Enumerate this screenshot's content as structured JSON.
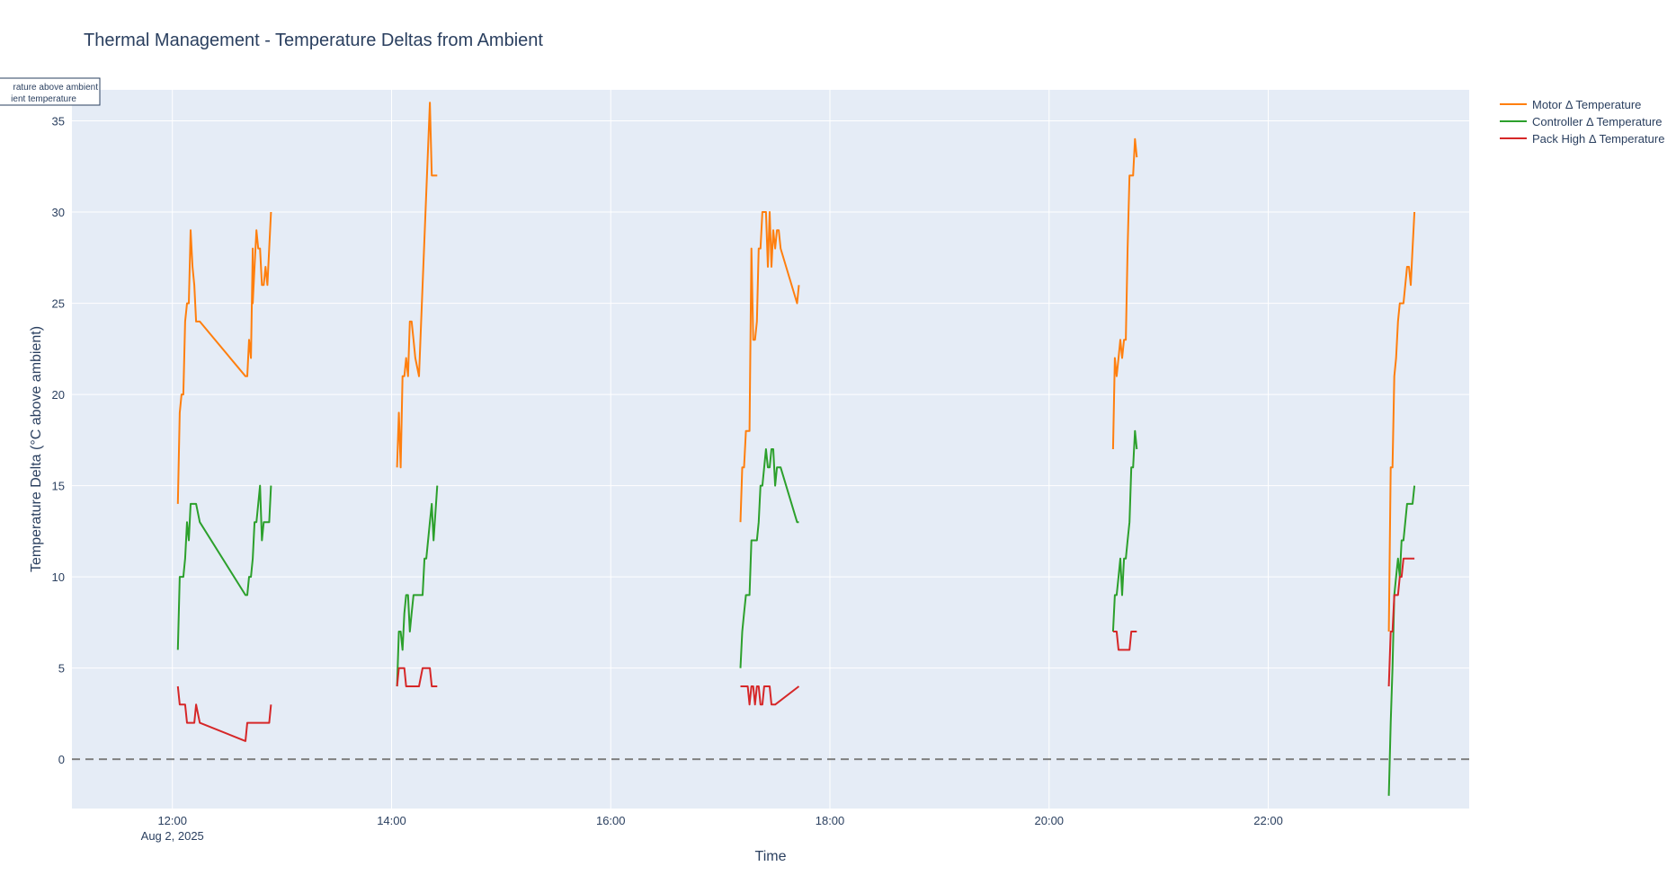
{
  "chart_data": {
    "type": "line",
    "title": "Thermal Management - Temperature Deltas from Ambient",
    "xlabel": "Time",
    "ylabel": "Temperature Delta (°C above ambient)",
    "xlim": [
      "2025-08-02 11:05",
      "2025-08-02 23:50"
    ],
    "ylim": [
      -2.7,
      36.7
    ],
    "x_ticks": [
      {
        "t": "2025-08-02 12:00",
        "label": "12:00",
        "sublabel": "Aug 2, 2025"
      },
      {
        "t": "2025-08-02 14:00",
        "label": "14:00",
        "sublabel": ""
      },
      {
        "t": "2025-08-02 16:00",
        "label": "16:00",
        "sublabel": ""
      },
      {
        "t": "2025-08-02 18:00",
        "label": "18:00",
        "sublabel": ""
      },
      {
        "t": "2025-08-02 20:00",
        "label": "20:00",
        "sublabel": ""
      },
      {
        "t": "2025-08-02 22:00",
        "label": "22:00",
        "sublabel": ""
      }
    ],
    "y_ticks": [
      0,
      5,
      10,
      15,
      20,
      25,
      30,
      35
    ],
    "grid": true,
    "legend_position": "top-right outside",
    "reference_line": {
      "y": 0,
      "style": "dashed",
      "color": "#808080"
    },
    "annotation": [
      "rature above ambient",
      "ient temperature"
    ],
    "series": [
      {
        "name": "Motor Δ Temperature",
        "color": "#ff7f0e",
        "segments": [
          {
            "x": [
              "2025-08-02 12:03",
              "2025-08-02 12:04",
              "2025-08-02 12:05",
              "2025-08-02 12:06",
              "2025-08-02 12:07",
              "2025-08-02 12:08",
              "2025-08-02 12:09",
              "2025-08-02 12:10",
              "2025-08-02 12:11",
              "2025-08-02 12:12",
              "2025-08-02 12:13",
              "2025-08-02 12:15",
              "2025-08-02 12:40",
              "2025-08-02 12:41",
              "2025-08-02 12:42",
              "2025-08-02 12:43",
              "2025-08-02 12:44",
              "2025-08-02 12:44",
              "2025-08-02 12:45",
              "2025-08-02 12:46",
              "2025-08-02 12:47",
              "2025-08-02 12:48",
              "2025-08-02 12:49",
              "2025-08-02 12:50",
              "2025-08-02 12:51",
              "2025-08-02 12:52",
              "2025-08-02 12:53",
              "2025-08-02 12:54"
            ],
            "y": [
              14,
              19,
              20,
              20,
              24,
              25,
              25,
              29,
              27,
              26,
              24,
              24,
              21,
              21,
              23,
              22,
              28,
              25,
              27,
              29,
              28,
              28,
              26,
              26,
              27,
              26,
              28,
              30
            ]
          },
          {
            "x": [
              "2025-08-02 14:03",
              "2025-08-02 14:04",
              "2025-08-02 14:05",
              "2025-08-02 14:06",
              "2025-08-02 14:07",
              "2025-08-02 14:08",
              "2025-08-02 14:09",
              "2025-08-02 14:10",
              "2025-08-02 14:11",
              "2025-08-02 14:12",
              "2025-08-02 14:13",
              "2025-08-02 14:15",
              "2025-08-02 14:17",
              "2025-08-02 14:21",
              "2025-08-02 14:22",
              "2025-08-02 14:23",
              "2025-08-02 14:25"
            ],
            "y": [
              16,
              19,
              16,
              21,
              21,
              22,
              21,
              24,
              24,
              23,
              22,
              21,
              26,
              36,
              32,
              32,
              32
            ]
          },
          {
            "x": [
              "2025-08-02 17:11",
              "2025-08-02 17:12",
              "2025-08-02 17:13",
              "2025-08-02 17:14",
              "2025-08-02 17:15",
              "2025-08-02 17:16",
              "2025-08-02 17:17",
              "2025-08-02 17:18",
              "2025-08-02 17:19",
              "2025-08-02 17:20",
              "2025-08-02 17:21",
              "2025-08-02 17:22",
              "2025-08-02 17:23",
              "2025-08-02 17:24",
              "2025-08-02 17:25",
              "2025-08-02 17:26",
              "2025-08-02 17:27",
              "2025-08-02 17:28",
              "2025-08-02 17:29",
              "2025-08-02 17:30",
              "2025-08-02 17:31",
              "2025-08-02 17:32",
              "2025-08-02 17:33",
              "2025-08-02 17:42",
              "2025-08-02 17:43"
            ],
            "y": [
              13,
              16,
              16,
              18,
              18,
              18,
              28,
              23,
              23,
              24,
              28,
              28,
              30,
              30,
              30,
              27,
              30,
              27,
              29,
              28,
              29,
              29,
              28,
              25,
              26
            ]
          },
          {
            "x": [
              "2025-08-02 20:35",
              "2025-08-02 20:36",
              "2025-08-02 20:37",
              "2025-08-02 20:38",
              "2025-08-02 20:39",
              "2025-08-02 20:40",
              "2025-08-02 20:41",
              "2025-08-02 20:42",
              "2025-08-02 20:43",
              "2025-08-02 20:44",
              "2025-08-02 20:45",
              "2025-08-02 20:46",
              "2025-08-02 20:47",
              "2025-08-02 20:48"
            ],
            "y": [
              17,
              22,
              21,
              22,
              23,
              22,
              23,
              23,
              28,
              32,
              32,
              32,
              34,
              33
            ]
          },
          {
            "x": [
              "2025-08-02 23:06",
              "2025-08-02 23:07",
              "2025-08-02 23:08",
              "2025-08-02 23:09",
              "2025-08-02 23:10",
              "2025-08-02 23:11",
              "2025-08-02 23:12",
              "2025-08-02 23:13",
              "2025-08-02 23:14",
              "2025-08-02 23:15",
              "2025-08-02 23:16",
              "2025-08-02 23:17",
              "2025-08-02 23:18",
              "2025-08-02 23:19",
              "2025-08-02 23:20"
            ],
            "y": [
              7,
              16,
              16,
              21,
              22,
              24,
              25,
              25,
              25,
              26,
              27,
              27,
              26,
              28,
              30
            ]
          }
        ]
      },
      {
        "name": "Controller Δ Temperature",
        "color": "#2ca02c",
        "segments": [
          {
            "x": [
              "2025-08-02 12:03",
              "2025-08-02 12:04",
              "2025-08-02 12:05",
              "2025-08-02 12:06",
              "2025-08-02 12:07",
              "2025-08-02 12:08",
              "2025-08-02 12:09",
              "2025-08-02 12:10",
              "2025-08-02 12:11",
              "2025-08-02 12:12",
              "2025-08-02 12:13",
              "2025-08-02 12:15",
              "2025-08-02 12:40",
              "2025-08-02 12:41",
              "2025-08-02 12:42",
              "2025-08-02 12:43",
              "2025-08-02 12:44",
              "2025-08-02 12:45",
              "2025-08-02 12:46",
              "2025-08-02 12:47",
              "2025-08-02 12:48",
              "2025-08-02 12:49",
              "2025-08-02 12:50",
              "2025-08-02 12:51",
              "2025-08-02 12:52",
              "2025-08-02 12:53",
              "2025-08-02 12:54"
            ],
            "y": [
              6,
              10,
              10,
              10,
              11,
              13,
              12,
              14,
              14,
              14,
              14,
              13,
              9,
              9,
              10,
              10,
              11,
              13,
              13,
              14,
              15,
              12,
              13,
              13,
              13,
              13,
              15
            ]
          },
          {
            "x": [
              "2025-08-02 14:03",
              "2025-08-02 14:04",
              "2025-08-02 14:05",
              "2025-08-02 14:06",
              "2025-08-02 14:07",
              "2025-08-02 14:08",
              "2025-08-02 14:09",
              "2025-08-02 14:10",
              "2025-08-02 14:11",
              "2025-08-02 14:12",
              "2025-08-02 14:13",
              "2025-08-02 14:15",
              "2025-08-02 14:16",
              "2025-08-02 14:17",
              "2025-08-02 14:18",
              "2025-08-02 14:19",
              "2025-08-02 14:20",
              "2025-08-02 14:21",
              "2025-08-02 14:22",
              "2025-08-02 14:23",
              "2025-08-02 14:25"
            ],
            "y": [
              4,
              7,
              7,
              6,
              8,
              9,
              9,
              7,
              8,
              9,
              9,
              9,
              9,
              9,
              11,
              11,
              12,
              13,
              14,
              12,
              15
            ]
          },
          {
            "x": [
              "2025-08-02 17:11",
              "2025-08-02 17:12",
              "2025-08-02 17:13",
              "2025-08-02 17:14",
              "2025-08-02 17:15",
              "2025-08-02 17:16",
              "2025-08-02 17:17",
              "2025-08-02 17:18",
              "2025-08-02 17:19",
              "2025-08-02 17:20",
              "2025-08-02 17:21",
              "2025-08-02 17:22",
              "2025-08-02 17:23",
              "2025-08-02 17:24",
              "2025-08-02 17:25",
              "2025-08-02 17:26",
              "2025-08-02 17:27",
              "2025-08-02 17:28",
              "2025-08-02 17:29",
              "2025-08-02 17:30",
              "2025-08-02 17:31",
              "2025-08-02 17:32",
              "2025-08-02 17:33",
              "2025-08-02 17:42",
              "2025-08-02 17:43"
            ],
            "y": [
              5,
              7,
              8,
              9,
              9,
              9,
              12,
              12,
              12,
              12,
              13,
              15,
              15,
              16,
              17,
              16,
              16,
              17,
              17,
              15,
              16,
              16,
              16,
              13,
              13
            ]
          },
          {
            "x": [
              "2025-08-02 20:35",
              "2025-08-02 20:36",
              "2025-08-02 20:37",
              "2025-08-02 20:38",
              "2025-08-02 20:39",
              "2025-08-02 20:40",
              "2025-08-02 20:41",
              "2025-08-02 20:42",
              "2025-08-02 20:43",
              "2025-08-02 20:44",
              "2025-08-02 20:45",
              "2025-08-02 20:46",
              "2025-08-02 20:47",
              "2025-08-02 20:48"
            ],
            "y": [
              7,
              9,
              9,
              10,
              11,
              9,
              11,
              11,
              12,
              13,
              16,
              16,
              18,
              17
            ]
          },
          {
            "x": [
              "2025-08-02 23:06",
              "2025-08-02 23:07",
              "2025-08-02 23:08",
              "2025-08-02 23:09",
              "2025-08-02 23:10",
              "2025-08-02 23:11",
              "2025-08-02 23:12",
              "2025-08-02 23:13",
              "2025-08-02 23:14",
              "2025-08-02 23:15",
              "2025-08-02 23:16",
              "2025-08-02 23:17",
              "2025-08-02 23:18",
              "2025-08-02 23:19",
              "2025-08-02 23:20"
            ],
            "y": [
              -2,
              2,
              5,
              9,
              10,
              11,
              10,
              12,
              12,
              13,
              14,
              14,
              14,
              14,
              15
            ]
          }
        ]
      },
      {
        "name": "Pack High Δ Temperature",
        "color": "#d62728",
        "segments": [
          {
            "x": [
              "2025-08-02 12:03",
              "2025-08-02 12:04",
              "2025-08-02 12:05",
              "2025-08-02 12:06",
              "2025-08-02 12:07",
              "2025-08-02 12:08",
              "2025-08-02 12:09",
              "2025-08-02 12:10",
              "2025-08-02 12:11",
              "2025-08-02 12:12",
              "2025-08-02 12:13",
              "2025-08-02 12:15",
              "2025-08-02 12:40",
              "2025-08-02 12:41",
              "2025-08-02 12:42",
              "2025-08-02 12:44",
              "2025-08-02 12:46",
              "2025-08-02 12:48",
              "2025-08-02 12:50",
              "2025-08-02 12:52",
              "2025-08-02 12:53",
              "2025-08-02 12:54"
            ],
            "y": [
              4,
              3,
              3,
              3,
              3,
              2,
              2,
              2,
              2,
              2,
              3,
              2,
              1,
              2,
              2,
              2,
              2,
              2,
              2,
              2,
              2,
              3
            ]
          },
          {
            "x": [
              "2025-08-02 14:03",
              "2025-08-02 14:04",
              "2025-08-02 14:05",
              "2025-08-02 14:06",
              "2025-08-02 14:07",
              "2025-08-02 14:08",
              "2025-08-02 14:09",
              "2025-08-02 14:10",
              "2025-08-02 14:12",
              "2025-08-02 14:14",
              "2025-08-02 14:15",
              "2025-08-02 14:17",
              "2025-08-02 14:18",
              "2025-08-02 14:19",
              "2025-08-02 14:21",
              "2025-08-02 14:22",
              "2025-08-02 14:23",
              "2025-08-02 14:25"
            ],
            "y": [
              4,
              5,
              5,
              5,
              5,
              4,
              4,
              4,
              4,
              4,
              4,
              5,
              5,
              5,
              5,
              4,
              4,
              4
            ]
          },
          {
            "x": [
              "2025-08-02 17:11",
              "2025-08-02 17:12",
              "2025-08-02 17:13",
              "2025-08-02 17:14",
              "2025-08-02 17:15",
              "2025-08-02 17:16",
              "2025-08-02 17:17",
              "2025-08-02 17:18",
              "2025-08-02 17:19",
              "2025-08-02 17:20",
              "2025-08-02 17:21",
              "2025-08-02 17:22",
              "2025-08-02 17:23",
              "2025-08-02 17:24",
              "2025-08-02 17:25",
              "2025-08-02 17:26",
              "2025-08-02 17:27",
              "2025-08-02 17:28",
              "2025-08-02 17:29",
              "2025-08-02 17:30",
              "2025-08-02 17:43"
            ],
            "y": [
              4,
              4,
              4,
              4,
              4,
              3,
              4,
              4,
              3,
              4,
              4,
              3,
              3,
              4,
              4,
              4,
              4,
              3,
              3,
              3,
              4
            ]
          },
          {
            "x": [
              "2025-08-02 20:35",
              "2025-08-02 20:36",
              "2025-08-02 20:37",
              "2025-08-02 20:38",
              "2025-08-02 20:40",
              "2025-08-02 20:42",
              "2025-08-02 20:44",
              "2025-08-02 20:45",
              "2025-08-02 20:47",
              "2025-08-02 20:48"
            ],
            "y": [
              7,
              7,
              7,
              6,
              6,
              6,
              6,
              7,
              7,
              7
            ]
          },
          {
            "x": [
              "2025-08-02 23:06",
              "2025-08-02 23:07",
              "2025-08-02 23:08",
              "2025-08-02 23:09",
              "2025-08-02 23:10",
              "2025-08-02 23:11",
              "2025-08-02 23:12",
              "2025-08-02 23:13",
              "2025-08-02 23:14",
              "2025-08-02 23:15",
              "2025-08-02 23:16",
              "2025-08-02 23:17",
              "2025-08-02 23:18",
              "2025-08-02 23:19",
              "2025-08-02 23:20"
            ],
            "y": [
              4,
              7,
              7,
              9,
              9,
              9,
              10,
              10,
              11,
              11,
              11,
              11,
              11,
              11,
              11
            ]
          }
        ]
      }
    ]
  }
}
